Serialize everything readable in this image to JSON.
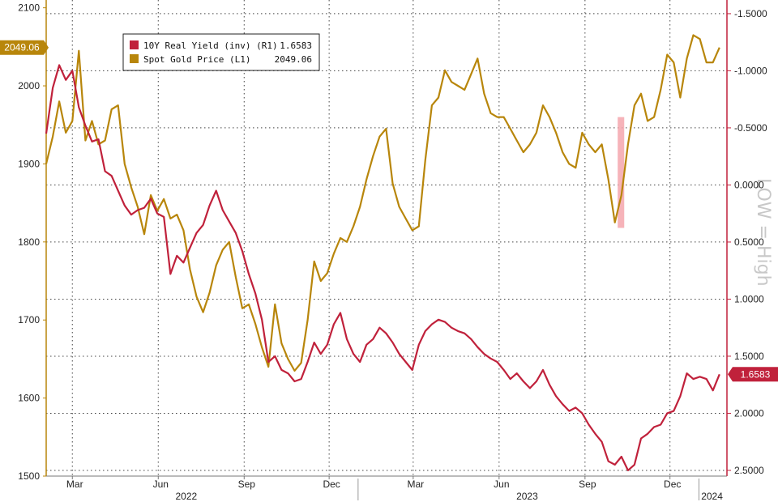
{
  "chart_data": {
    "type": "line",
    "title": "",
    "annotation": "LOW = High",
    "grid": true,
    "legend_position": "top-left",
    "x_axis": {
      "month_ticks": [
        {
          "label": "Mar",
          "date": "2022-03-01"
        },
        {
          "label": "Jun",
          "date": "2022-06-01"
        },
        {
          "label": "Sep",
          "date": "2022-09-01"
        },
        {
          "label": "Dec",
          "date": "2022-12-01"
        },
        {
          "label": "Mar",
          "date": "2023-03-01"
        },
        {
          "label": "Jun",
          "date": "2023-06-01"
        },
        {
          "label": "Sep",
          "date": "2023-09-01"
        },
        {
          "label": "Dec",
          "date": "2023-12-01"
        }
      ],
      "year_labels": [
        {
          "label": "2022",
          "date": "2022-07-01"
        },
        {
          "label": "2023",
          "date": "2023-07-01"
        },
        {
          "label": "2024",
          "date": "2024-01-15"
        }
      ],
      "range": [
        "2022-02-01",
        "2024-01-31"
      ]
    },
    "left_axis": {
      "ticks": [
        "2100",
        "2000",
        "1900",
        "1800",
        "1700",
        "1600",
        "1500"
      ],
      "range": [
        1500,
        2110
      ]
    },
    "right_axis": {
      "inverted": true,
      "ticks": [
        "-1.5000",
        "-1.0000",
        "-0.5000",
        "0.0000",
        "0.5000",
        "1.0000",
        "1.5000",
        "2.0000",
        "2.5000"
      ],
      "range": [
        -1.62,
        2.55
      ]
    },
    "highlight": {
      "x_range": [
        "2023-10-06",
        "2023-10-13"
      ],
      "y_range": [
        1960,
        1818
      ],
      "color": "#f4a6ad"
    },
    "series": [
      {
        "name": "Spot Gold Price (L1)",
        "axis": "left",
        "color": "#b8860b",
        "last_value": "2049.06",
        "points": [
          [
            "2022-02-01",
            1900
          ],
          [
            "2022-02-08",
            1935
          ],
          [
            "2022-02-15",
            1980
          ],
          [
            "2022-02-22",
            1940
          ],
          [
            "2022-03-01",
            1955
          ],
          [
            "2022-03-08",
            2045
          ],
          [
            "2022-03-15",
            1930
          ],
          [
            "2022-03-22",
            1955
          ],
          [
            "2022-03-29",
            1925
          ],
          [
            "2022-04-05",
            1930
          ],
          [
            "2022-04-12",
            1970
          ],
          [
            "2022-04-19",
            1975
          ],
          [
            "2022-04-26",
            1900
          ],
          [
            "2022-05-03",
            1870
          ],
          [
            "2022-05-10",
            1845
          ],
          [
            "2022-05-17",
            1810
          ],
          [
            "2022-05-24",
            1860
          ],
          [
            "2022-05-31",
            1840
          ],
          [
            "2022-06-07",
            1855
          ],
          [
            "2022-06-14",
            1830
          ],
          [
            "2022-06-21",
            1835
          ],
          [
            "2022-06-28",
            1815
          ],
          [
            "2022-07-05",
            1765
          ],
          [
            "2022-07-12",
            1730
          ],
          [
            "2022-07-19",
            1710
          ],
          [
            "2022-07-26",
            1735
          ],
          [
            "2022-08-02",
            1770
          ],
          [
            "2022-08-09",
            1790
          ],
          [
            "2022-08-16",
            1800
          ],
          [
            "2022-08-23",
            1755
          ],
          [
            "2022-08-30",
            1715
          ],
          [
            "2022-09-06",
            1720
          ],
          [
            "2022-09-13",
            1695
          ],
          [
            "2022-09-20",
            1665
          ],
          [
            "2022-09-27",
            1640
          ],
          [
            "2022-10-04",
            1720
          ],
          [
            "2022-10-11",
            1670
          ],
          [
            "2022-10-18",
            1650
          ],
          [
            "2022-10-25",
            1635
          ],
          [
            "2022-11-01",
            1645
          ],
          [
            "2022-11-08",
            1700
          ],
          [
            "2022-11-15",
            1775
          ],
          [
            "2022-11-22",
            1750
          ],
          [
            "2022-11-29",
            1760
          ],
          [
            "2022-12-06",
            1785
          ],
          [
            "2022-12-13",
            1805
          ],
          [
            "2022-12-20",
            1800
          ],
          [
            "2022-12-27",
            1820
          ],
          [
            "2023-01-03",
            1845
          ],
          [
            "2023-01-10",
            1880
          ],
          [
            "2023-01-17",
            1910
          ],
          [
            "2023-01-24",
            1935
          ],
          [
            "2023-01-31",
            1945
          ],
          [
            "2023-02-07",
            1875
          ],
          [
            "2023-02-14",
            1845
          ],
          [
            "2023-02-21",
            1830
          ],
          [
            "2023-02-28",
            1815
          ],
          [
            "2023-03-07",
            1820
          ],
          [
            "2023-03-14",
            1905
          ],
          [
            "2023-03-21",
            1975
          ],
          [
            "2023-03-28",
            1985
          ],
          [
            "2023-04-04",
            2020
          ],
          [
            "2023-04-11",
            2005
          ],
          [
            "2023-04-18",
            2000
          ],
          [
            "2023-04-25",
            1995
          ],
          [
            "2023-05-02",
            2015
          ],
          [
            "2023-05-09",
            2035
          ],
          [
            "2023-05-16",
            1990
          ],
          [
            "2023-05-23",
            1965
          ],
          [
            "2023-05-30",
            1960
          ],
          [
            "2023-06-06",
            1960
          ],
          [
            "2023-06-13",
            1945
          ],
          [
            "2023-06-20",
            1930
          ],
          [
            "2023-06-27",
            1915
          ],
          [
            "2023-07-04",
            1925
          ],
          [
            "2023-07-11",
            1940
          ],
          [
            "2023-07-18",
            1975
          ],
          [
            "2023-07-25",
            1960
          ],
          [
            "2023-08-01",
            1940
          ],
          [
            "2023-08-08",
            1915
          ],
          [
            "2023-08-15",
            1900
          ],
          [
            "2023-08-22",
            1895
          ],
          [
            "2023-08-29",
            1940
          ],
          [
            "2023-09-05",
            1925
          ],
          [
            "2023-09-12",
            1915
          ],
          [
            "2023-09-19",
            1925
          ],
          [
            "2023-09-26",
            1880
          ],
          [
            "2023-10-03",
            1825
          ],
          [
            "2023-10-10",
            1860
          ],
          [
            "2023-10-17",
            1925
          ],
          [
            "2023-10-24",
            1975
          ],
          [
            "2023-10-31",
            1990
          ],
          [
            "2023-11-07",
            1955
          ],
          [
            "2023-11-14",
            1960
          ],
          [
            "2023-11-21",
            1995
          ],
          [
            "2023-11-28",
            2040
          ],
          [
            "2023-12-05",
            2030
          ],
          [
            "2023-12-12",
            1985
          ],
          [
            "2023-12-19",
            2035
          ],
          [
            "2023-12-26",
            2065
          ],
          [
            "2024-01-02",
            2060
          ],
          [
            "2024-01-09",
            2030
          ],
          [
            "2024-01-16",
            2030
          ],
          [
            "2024-01-23",
            2049.06
          ]
        ]
      },
      {
        "name": "10Y Real Yield (inv) (R1)",
        "axis": "right",
        "color": "#c0213b",
        "last_value": "1.6583",
        "points": [
          [
            "2022-02-01",
            -0.45
          ],
          [
            "2022-02-08",
            -0.85
          ],
          [
            "2022-02-15",
            -1.05
          ],
          [
            "2022-02-22",
            -0.92
          ],
          [
            "2022-03-01",
            -1.0
          ],
          [
            "2022-03-08",
            -0.68
          ],
          [
            "2022-03-15",
            -0.52
          ],
          [
            "2022-03-22",
            -0.38
          ],
          [
            "2022-03-29",
            -0.4
          ],
          [
            "2022-04-05",
            -0.12
          ],
          [
            "2022-04-12",
            -0.08
          ],
          [
            "2022-04-19",
            0.05
          ],
          [
            "2022-04-26",
            0.18
          ],
          [
            "2022-05-03",
            0.26
          ],
          [
            "2022-05-10",
            0.22
          ],
          [
            "2022-05-17",
            0.2
          ],
          [
            "2022-05-24",
            0.12
          ],
          [
            "2022-05-31",
            0.25
          ],
          [
            "2022-06-07",
            0.28
          ],
          [
            "2022-06-14",
            0.78
          ],
          [
            "2022-06-21",
            0.62
          ],
          [
            "2022-06-28",
            0.68
          ],
          [
            "2022-07-05",
            0.55
          ],
          [
            "2022-07-12",
            0.42
          ],
          [
            "2022-07-19",
            0.35
          ],
          [
            "2022-07-26",
            0.18
          ],
          [
            "2022-08-02",
            0.05
          ],
          [
            "2022-08-09",
            0.22
          ],
          [
            "2022-08-16",
            0.32
          ],
          [
            "2022-08-23",
            0.42
          ],
          [
            "2022-08-30",
            0.58
          ],
          [
            "2022-09-06",
            0.78
          ],
          [
            "2022-09-13",
            0.95
          ],
          [
            "2022-09-20",
            1.18
          ],
          [
            "2022-09-27",
            1.55
          ],
          [
            "2022-10-04",
            1.5
          ],
          [
            "2022-10-11",
            1.62
          ],
          [
            "2022-10-18",
            1.65
          ],
          [
            "2022-10-25",
            1.72
          ],
          [
            "2022-11-01",
            1.7
          ],
          [
            "2022-11-08",
            1.55
          ],
          [
            "2022-11-15",
            1.38
          ],
          [
            "2022-11-22",
            1.48
          ],
          [
            "2022-11-29",
            1.4
          ],
          [
            "2022-12-06",
            1.22
          ],
          [
            "2022-12-13",
            1.12
          ],
          [
            "2022-12-20",
            1.35
          ],
          [
            "2022-12-27",
            1.48
          ],
          [
            "2023-01-03",
            1.55
          ],
          [
            "2023-01-10",
            1.4
          ],
          [
            "2023-01-17",
            1.35
          ],
          [
            "2023-01-24",
            1.25
          ],
          [
            "2023-01-31",
            1.3
          ],
          [
            "2023-02-07",
            1.38
          ],
          [
            "2023-02-14",
            1.48
          ],
          [
            "2023-02-21",
            1.55
          ],
          [
            "2023-02-28",
            1.62
          ],
          [
            "2023-03-07",
            1.4
          ],
          [
            "2023-03-14",
            1.28
          ],
          [
            "2023-03-21",
            1.22
          ],
          [
            "2023-03-28",
            1.18
          ],
          [
            "2023-04-04",
            1.2
          ],
          [
            "2023-04-11",
            1.25
          ],
          [
            "2023-04-18",
            1.28
          ],
          [
            "2023-04-25",
            1.3
          ],
          [
            "2023-05-02",
            1.35
          ],
          [
            "2023-05-09",
            1.42
          ],
          [
            "2023-05-16",
            1.48
          ],
          [
            "2023-05-23",
            1.52
          ],
          [
            "2023-05-30",
            1.55
          ],
          [
            "2023-06-06",
            1.62
          ],
          [
            "2023-06-13",
            1.7
          ],
          [
            "2023-06-20",
            1.65
          ],
          [
            "2023-06-27",
            1.72
          ],
          [
            "2023-07-04",
            1.78
          ],
          [
            "2023-07-11",
            1.72
          ],
          [
            "2023-07-18",
            1.62
          ],
          [
            "2023-07-25",
            1.75
          ],
          [
            "2023-08-01",
            1.85
          ],
          [
            "2023-08-08",
            1.92
          ],
          [
            "2023-08-15",
            1.98
          ],
          [
            "2023-08-22",
            1.95
          ],
          [
            "2023-08-29",
            2.0
          ],
          [
            "2023-09-05",
            2.1
          ],
          [
            "2023-09-12",
            2.18
          ],
          [
            "2023-09-19",
            2.25
          ],
          [
            "2023-09-26",
            2.42
          ],
          [
            "2023-10-03",
            2.45
          ],
          [
            "2023-10-10",
            2.38
          ],
          [
            "2023-10-17",
            2.5
          ],
          [
            "2023-10-24",
            2.45
          ],
          [
            "2023-10-31",
            2.22
          ],
          [
            "2023-11-07",
            2.18
          ],
          [
            "2023-11-14",
            2.12
          ],
          [
            "2023-11-21",
            2.1
          ],
          [
            "2023-11-28",
            2.0
          ],
          [
            "2023-12-05",
            1.98
          ],
          [
            "2023-12-12",
            1.85
          ],
          [
            "2023-12-19",
            1.65
          ],
          [
            "2023-12-26",
            1.7
          ],
          [
            "2024-01-02",
            1.68
          ],
          [
            "2024-01-09",
            1.7
          ],
          [
            "2024-01-16",
            1.8
          ],
          [
            "2024-01-23",
            1.6583
          ]
        ]
      }
    ]
  }
}
